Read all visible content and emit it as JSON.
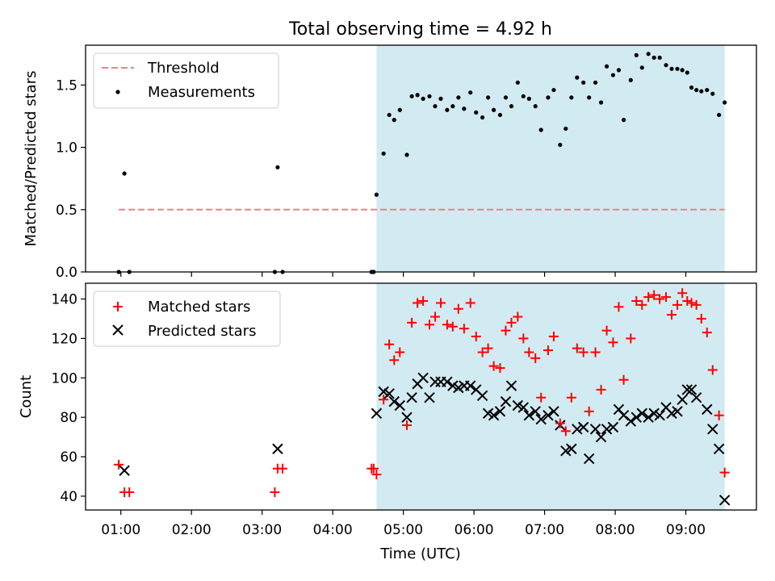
{
  "figure": {
    "title": "Total observing time = 4.92 h",
    "xlabel": "Time (UTC)"
  },
  "chart_data": [
    {
      "type": "scatter",
      "ylabel": "Matched/Predicted stars",
      "xlim": [
        0.5,
        10.0
      ],
      "ylim": [
        0.0,
        1.82
      ],
      "x_ticks": [
        1,
        2,
        3,
        4,
        5,
        6,
        7,
        8,
        9
      ],
      "y_ticks": [
        0.0,
        0.5,
        1.0,
        1.5
      ],
      "y_tick_labels": [
        "0.0",
        "0.5",
        "1.0",
        "1.5"
      ],
      "shaded_region": {
        "x": [
          4.62,
          9.55
        ],
        "color": "#add8e6"
      },
      "legend": {
        "position": "top-left",
        "entries": [
          "Threshold",
          "Measurements"
        ]
      },
      "threshold": {
        "name": "Threshold",
        "y": 0.5,
        "x": [
          0.97,
          9.55
        ],
        "color": "#f08080",
        "style": "dashed"
      },
      "measurements": {
        "name": "Measurements",
        "color": "#000000",
        "points": [
          [
            0.97,
            0.0
          ],
          [
            1.05,
            0.79
          ],
          [
            1.12,
            0.0
          ],
          [
            3.18,
            0.0
          ],
          [
            3.22,
            0.84
          ],
          [
            3.29,
            0.0
          ],
          [
            4.55,
            0.0
          ],
          [
            4.58,
            0.0
          ],
          [
            4.62,
            0.62
          ],
          [
            4.72,
            0.95
          ],
          [
            4.8,
            1.26
          ],
          [
            4.87,
            1.22
          ],
          [
            4.95,
            1.3
          ],
          [
            5.05,
            0.94
          ],
          [
            5.12,
            1.41
          ],
          [
            5.2,
            1.42
          ],
          [
            5.28,
            1.39
          ],
          [
            5.37,
            1.41
          ],
          [
            5.45,
            1.33
          ],
          [
            5.53,
            1.39
          ],
          [
            5.62,
            1.3
          ],
          [
            5.7,
            1.33
          ],
          [
            5.78,
            1.4
          ],
          [
            5.86,
            1.31
          ],
          [
            5.95,
            1.44
          ],
          [
            6.03,
            1.28
          ],
          [
            6.12,
            1.24
          ],
          [
            6.2,
            1.4
          ],
          [
            6.28,
            1.3
          ],
          [
            6.37,
            1.26
          ],
          [
            6.45,
            1.4
          ],
          [
            6.53,
            1.33
          ],
          [
            6.62,
            1.52
          ],
          [
            6.7,
            1.41
          ],
          [
            6.78,
            1.39
          ],
          [
            6.87,
            1.33
          ],
          [
            6.95,
            1.14
          ],
          [
            7.05,
            1.4
          ],
          [
            7.13,
            1.46
          ],
          [
            7.22,
            1.02
          ],
          [
            7.3,
            1.15
          ],
          [
            7.38,
            1.4
          ],
          [
            7.46,
            1.56
          ],
          [
            7.55,
            1.52
          ],
          [
            7.63,
            1.4
          ],
          [
            7.72,
            1.52
          ],
          [
            7.8,
            1.36
          ],
          [
            7.88,
            1.65
          ],
          [
            7.97,
            1.58
          ],
          [
            8.05,
            1.62
          ],
          [
            8.12,
            1.22
          ],
          [
            8.22,
            1.54
          ],
          [
            8.3,
            1.74
          ],
          [
            8.38,
            1.64
          ],
          [
            8.47,
            1.75
          ],
          [
            8.55,
            1.72
          ],
          [
            8.63,
            1.72
          ],
          [
            8.72,
            1.66
          ],
          [
            8.8,
            1.63
          ],
          [
            8.88,
            1.63
          ],
          [
            8.95,
            1.62
          ],
          [
            9.02,
            1.6
          ],
          [
            9.08,
            1.48
          ],
          [
            9.15,
            1.46
          ],
          [
            9.22,
            1.45
          ],
          [
            9.3,
            1.46
          ],
          [
            9.38,
            1.43
          ],
          [
            9.47,
            1.26
          ],
          [
            9.55,
            1.36
          ]
        ]
      }
    },
    {
      "type": "scatter",
      "ylabel": "Count",
      "xlim": [
        0.5,
        10.0
      ],
      "ylim": [
        33,
        148
      ],
      "x_ticks": [
        1,
        2,
        3,
        4,
        5,
        6,
        7,
        8,
        9
      ],
      "x_tick_labels": [
        "01:00",
        "02:00",
        "03:00",
        "04:00",
        "05:00",
        "06:00",
        "07:00",
        "08:00",
        "09:00"
      ],
      "y_ticks": [
        40,
        60,
        80,
        100,
        120,
        140
      ],
      "y_tick_labels": [
        "40",
        "60",
        "80",
        "100",
        "120",
        "140"
      ],
      "shaded_region": {
        "x": [
          4.62,
          9.55
        ],
        "color": "#add8e6"
      },
      "legend": {
        "position": "top-left",
        "entries": [
          "Matched stars",
          "Predicted stars"
        ]
      },
      "series": [
        {
          "name": "Matched stars",
          "marker": "plus",
          "color": "#ff0000",
          "points": [
            [
              0.97,
              56
            ],
            [
              1.05,
              42
            ],
            [
              1.12,
              42
            ],
            [
              3.18,
              42
            ],
            [
              3.22,
              54
            ],
            [
              3.29,
              54
            ],
            [
              4.55,
              54
            ],
            [
              4.58,
              54
            ],
            [
              4.62,
              51
            ],
            [
              4.72,
              89
            ],
            [
              4.8,
              117
            ],
            [
              4.87,
              109
            ],
            [
              4.95,
              113
            ],
            [
              5.05,
              76
            ],
            [
              5.12,
              128
            ],
            [
              5.2,
              138
            ],
            [
              5.28,
              139
            ],
            [
              5.37,
              127
            ],
            [
              5.45,
              131
            ],
            [
              5.53,
              138
            ],
            [
              5.62,
              127
            ],
            [
              5.7,
              126
            ],
            [
              5.78,
              135
            ],
            [
              5.86,
              125
            ],
            [
              5.95,
              138
            ],
            [
              6.03,
              121
            ],
            [
              6.12,
              113
            ],
            [
              6.2,
              115
            ],
            [
              6.28,
              106
            ],
            [
              6.37,
              105
            ],
            [
              6.45,
              124
            ],
            [
              6.53,
              128
            ],
            [
              6.62,
              131
            ],
            [
              6.7,
              120
            ],
            [
              6.78,
              113
            ],
            [
              6.87,
              110
            ],
            [
              6.95,
              90
            ],
            [
              7.05,
              114
            ],
            [
              7.13,
              121
            ],
            [
              7.22,
              77
            ],
            [
              7.3,
              73
            ],
            [
              7.38,
              90
            ],
            [
              7.46,
              115
            ],
            [
              7.55,
              113
            ],
            [
              7.63,
              83
            ],
            [
              7.72,
              113
            ],
            [
              7.8,
              94
            ],
            [
              7.88,
              124
            ],
            [
              7.97,
              118
            ],
            [
              8.05,
              136
            ],
            [
              8.12,
              99
            ],
            [
              8.22,
              120
            ],
            [
              8.3,
              139
            ],
            [
              8.38,
              137
            ],
            [
              8.47,
              141
            ],
            [
              8.55,
              142
            ],
            [
              8.63,
              140
            ],
            [
              8.72,
              141
            ],
            [
              8.8,
              132
            ],
            [
              8.88,
              137
            ],
            [
              8.95,
              143
            ],
            [
              9.02,
              139
            ],
            [
              9.08,
              138
            ],
            [
              9.15,
              137
            ],
            [
              9.22,
              130
            ],
            [
              9.3,
              123
            ],
            [
              9.38,
              104
            ],
            [
              9.47,
              81
            ],
            [
              9.55,
              52
            ]
          ]
        },
        {
          "name": "Predicted stars",
          "marker": "x",
          "color": "#000000",
          "points": [
            [
              1.05,
              53
            ],
            [
              3.22,
              64
            ],
            [
              4.62,
              82
            ],
            [
              4.72,
              93
            ],
            [
              4.8,
              92
            ],
            [
              4.87,
              88
            ],
            [
              4.95,
              86
            ],
            [
              5.05,
              80
            ],
            [
              5.12,
              90
            ],
            [
              5.2,
              97
            ],
            [
              5.28,
              100
            ],
            [
              5.37,
              90
            ],
            [
              5.45,
              98
            ],
            [
              5.53,
              98
            ],
            [
              5.62,
              98
            ],
            [
              5.7,
              96
            ],
            [
              5.78,
              95
            ],
            [
              5.86,
              96
            ],
            [
              5.95,
              96
            ],
            [
              6.03,
              94
            ],
            [
              6.12,
              91
            ],
            [
              6.2,
              82
            ],
            [
              6.28,
              81
            ],
            [
              6.37,
              83
            ],
            [
              6.45,
              88
            ],
            [
              6.53,
              96
            ],
            [
              6.62,
              86
            ],
            [
              6.7,
              85
            ],
            [
              6.78,
              81
            ],
            [
              6.87,
              83
            ],
            [
              6.95,
              79
            ],
            [
              7.05,
              81
            ],
            [
              7.13,
              83
            ],
            [
              7.22,
              76
            ],
            [
              7.3,
              63
            ],
            [
              7.38,
              64
            ],
            [
              7.46,
              74
            ],
            [
              7.55,
              75
            ],
            [
              7.63,
              59
            ],
            [
              7.72,
              74
            ],
            [
              7.8,
              70
            ],
            [
              7.88,
              74
            ],
            [
              7.97,
              75
            ],
            [
              8.05,
              84
            ],
            [
              8.12,
              81
            ],
            [
              8.22,
              78
            ],
            [
              8.3,
              80
            ],
            [
              8.38,
              82
            ],
            [
              8.47,
              80
            ],
            [
              8.55,
              82
            ],
            [
              8.63,
              81
            ],
            [
              8.72,
              85
            ],
            [
              8.8,
              82
            ],
            [
              8.88,
              83
            ],
            [
              8.95,
              89
            ],
            [
              9.02,
              94
            ],
            [
              9.08,
              94
            ],
            [
              9.15,
              90
            ],
            [
              9.3,
              84
            ],
            [
              9.38,
              74
            ],
            [
              9.47,
              64
            ],
            [
              9.55,
              38
            ]
          ]
        }
      ]
    }
  ]
}
